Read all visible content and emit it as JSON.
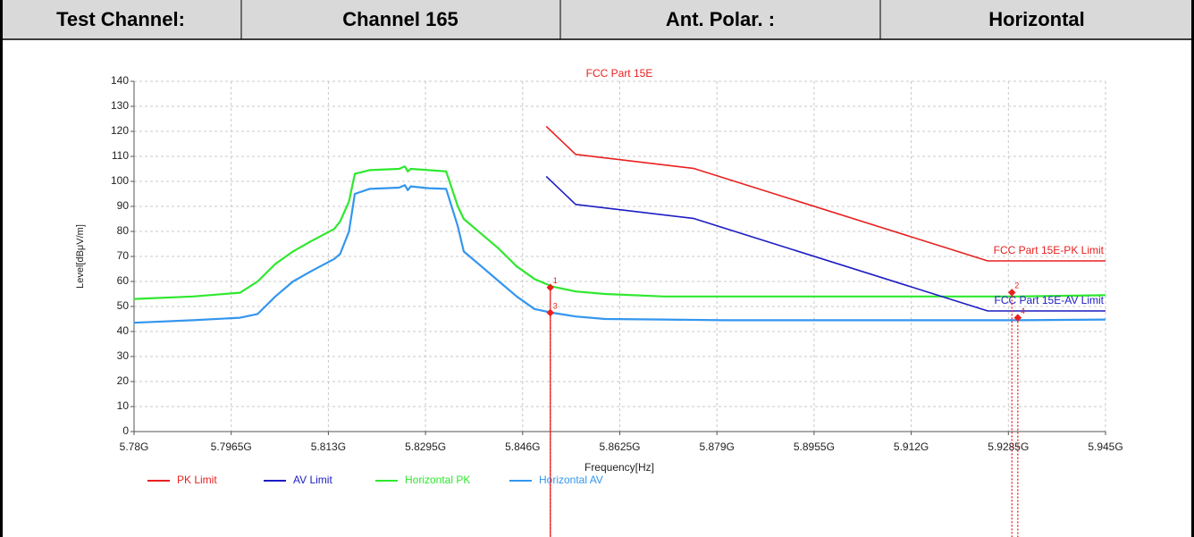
{
  "header": {
    "cells": [
      "Test Channel:",
      "Channel 165",
      "Ant. Polar. :",
      "Horizontal"
    ]
  },
  "chart_data": {
    "type": "line",
    "title": "FCC Part 15E",
    "xlabel": "Frequency[Hz]",
    "ylabel": "Level[dBμV/m]",
    "xlim": [
      5780000000,
      5945000000
    ],
    "xticks": [
      {
        "value": 5780000000,
        "label": "5.78G"
      },
      {
        "value": 5796500000,
        "label": "5.7965G"
      },
      {
        "value": 5813000000,
        "label": "5.813G"
      },
      {
        "value": 5829500000,
        "label": "5.8295G"
      },
      {
        "value": 5846000000,
        "label": "5.846G"
      },
      {
        "value": 5862500000,
        "label": "5.8625G"
      },
      {
        "value": 5879000000,
        "label": "5.879G"
      },
      {
        "value": 5895500000,
        "label": "5.8955G"
      },
      {
        "value": 5912000000,
        "label": "5.912G"
      },
      {
        "value": 5928500000,
        "label": "5.9285G"
      },
      {
        "value": 5945000000,
        "label": "5.945G"
      }
    ],
    "ylim": [
      0,
      140
    ],
    "yticks": [
      0,
      10,
      20,
      30,
      40,
      50,
      60,
      70,
      80,
      90,
      100,
      110,
      120,
      130,
      140
    ],
    "grid": true,
    "series": [
      {
        "name": "PK Limit",
        "color": "#e8201f",
        "x": [
          5850000000,
          5855000000,
          5875000000,
          5925000000,
          5945000000
        ],
        "values": [
          122,
          110.8,
          105.2,
          68.2,
          68.2
        ]
      },
      {
        "name": "AV Limit",
        "color": "#1c1cc4",
        "x": [
          5850000000,
          5855000000,
          5875000000,
          5925000000,
          5945000000
        ],
        "values": [
          102,
          90.8,
          85.2,
          48.2,
          48.2
        ]
      },
      {
        "name": "Horizontal PK",
        "color": "#2ee82e",
        "x": [
          5780000000,
          5790000000,
          5798000000,
          5801000000,
          5804000000,
          5807000000,
          5810000000,
          5814000000,
          5815000000,
          5816500000,
          5817500000,
          5820000000,
          5825000000,
          5826000000,
          5826500000,
          5827000000,
          5830000000,
          5833000000,
          5835000000,
          5836000000,
          5839000000,
          5842000000,
          5845000000,
          5848000000,
          5851000000,
          5855000000,
          5860000000,
          5870000000,
          5880000000,
          5890000000,
          5900000000,
          5910000000,
          5920000000,
          5930000000,
          5945000000
        ],
        "values": [
          53,
          54,
          55.5,
          60,
          67,
          72,
          76,
          81,
          84,
          92,
          103,
          104.5,
          105,
          106,
          104,
          105,
          104.5,
          104,
          90,
          85,
          79,
          73,
          66,
          61,
          58,
          56,
          55,
          54,
          54,
          54,
          54,
          54,
          54,
          54,
          54.5
        ]
      },
      {
        "name": "Horizontal AV",
        "color": "#3396ee",
        "x": [
          5780000000,
          5790000000,
          5798000000,
          5801000000,
          5804000000,
          5807000000,
          5810000000,
          5814000000,
          5815000000,
          5816500000,
          5817500000,
          5820000000,
          5825000000,
          5826000000,
          5826500000,
          5827000000,
          5830000000,
          5833000000,
          5835000000,
          5836000000,
          5839000000,
          5842000000,
          5845000000,
          5848000000,
          5851000000,
          5855000000,
          5860000000,
          5870000000,
          5880000000,
          5890000000,
          5900000000,
          5910000000,
          5920000000,
          5930000000,
          5945000000
        ],
        "values": [
          43.5,
          44.5,
          45.5,
          47,
          54,
          60,
          64,
          69,
          71,
          80,
          95,
          97,
          97.5,
          98.5,
          96.5,
          98,
          97.3,
          97,
          82,
          72,
          66,
          60,
          54,
          49,
          47.5,
          46,
          45,
          44.8,
          44.5,
          44.5,
          44.5,
          44.5,
          44.5,
          44.5,
          44.8
        ]
      }
    ],
    "annotations": [
      {
        "text": "FCC Part 15E-PK Limit",
        "color": "#e8201f"
      },
      {
        "text": "FCC Part 15E-AV Limit",
        "color": "#1c1cc4"
      }
    ],
    "markers": [
      {
        "label": "1",
        "x": 5850700000,
        "value": 57.6
      },
      {
        "label": "2",
        "x": 5929100000,
        "value": 55.6
      },
      {
        "label": "3",
        "x": 5850700000,
        "value": 47.5
      },
      {
        "label": "4",
        "x": 5930100000,
        "value": 45.5
      }
    ]
  }
}
